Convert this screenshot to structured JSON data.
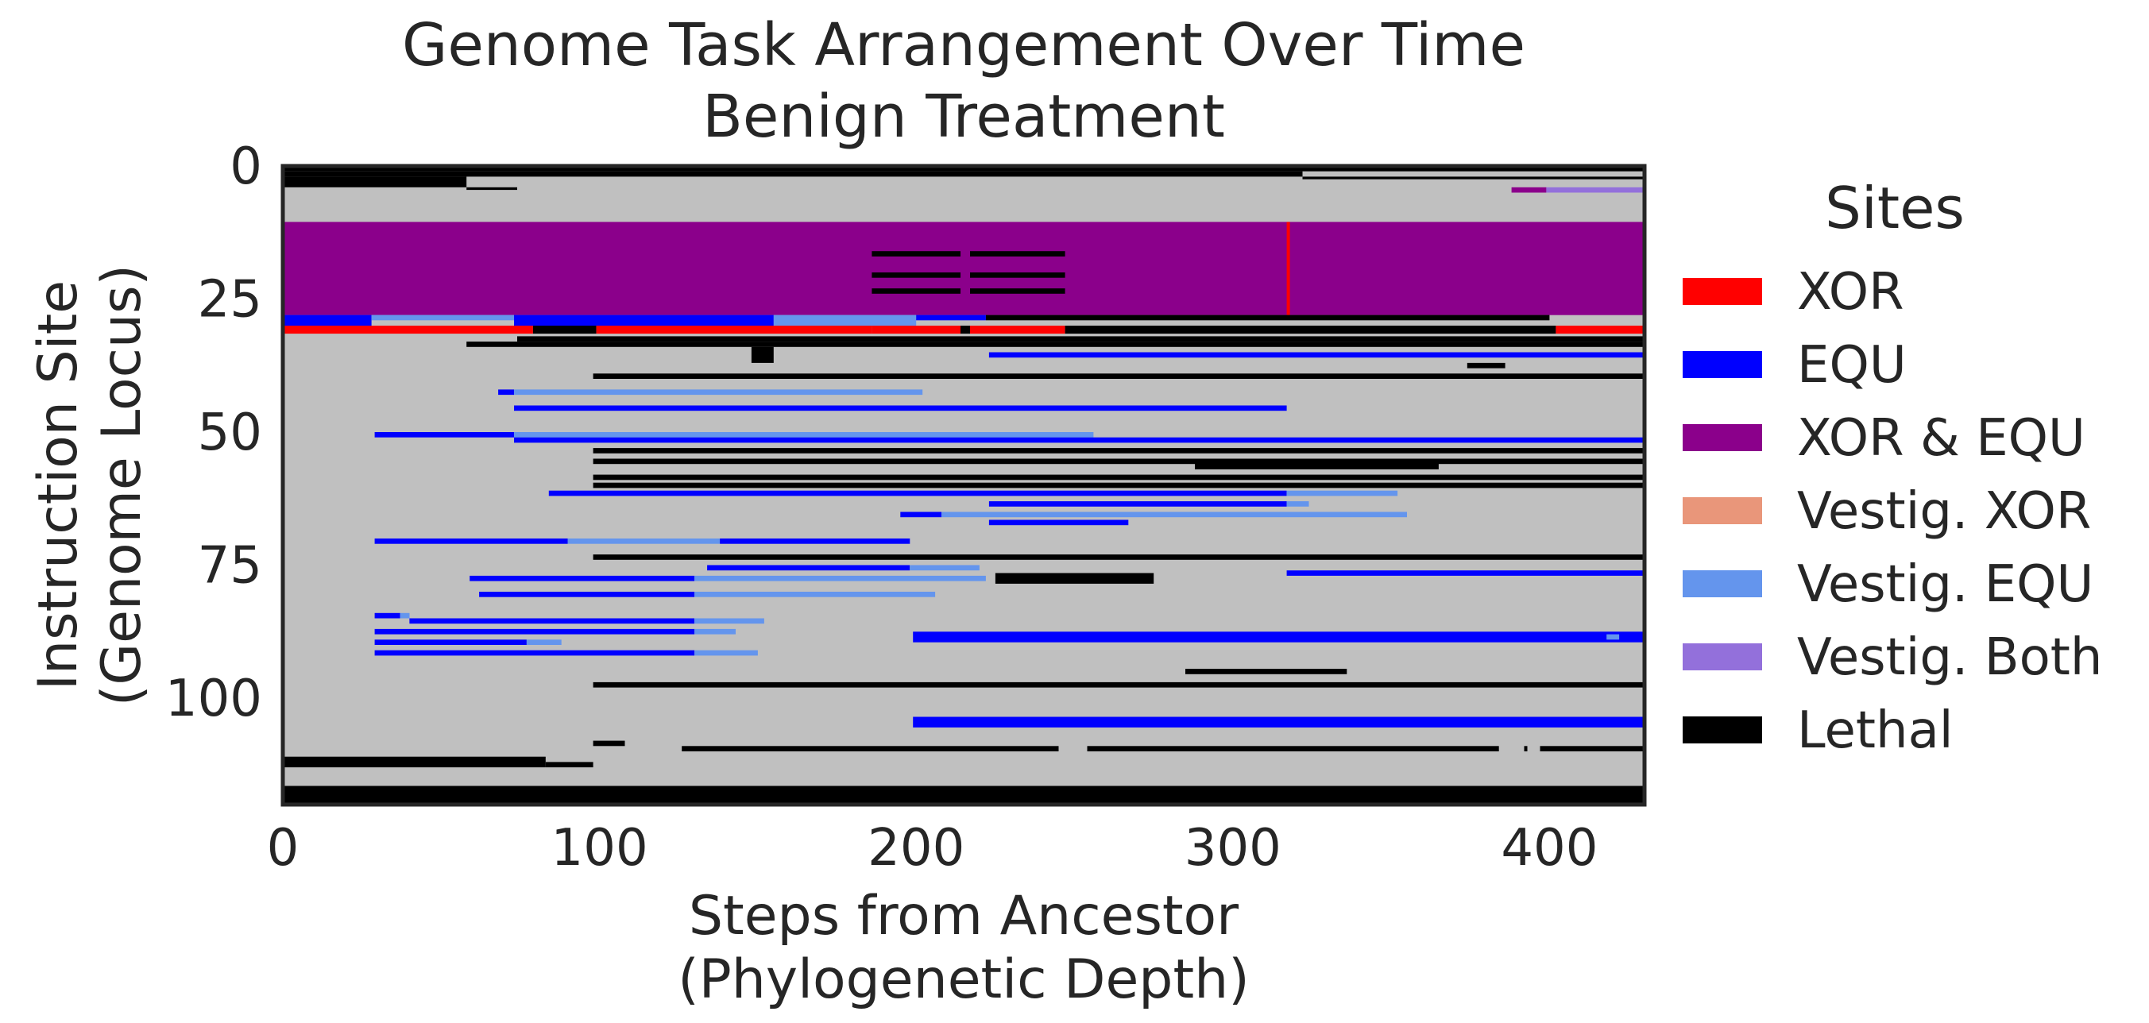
{
  "chart_data": {
    "type": "heatmap",
    "title_line1": "Genome Task Arrangement Over Time",
    "title_line2": "Benign Treatment",
    "xlabel_line1": "Steps from Ancestor",
    "xlabel_line2": "(Phylogenetic Depth)",
    "ylabel_line1": "Instruction Site",
    "ylabel_line2": "(Genome Locus)",
    "xlim": [
      0,
      430
    ],
    "ylim": [
      0,
      120
    ],
    "y_inverted": true,
    "x_ticks": [
      0,
      100,
      200,
      300,
      400
    ],
    "x_tick_labels": [
      "0",
      "100",
      "200",
      "300",
      "400"
    ],
    "y_ticks": [
      0,
      25,
      50,
      75,
      100
    ],
    "y_tick_labels": [
      "0",
      "25",
      "50",
      "75",
      "100"
    ],
    "background_color": "#c0c0c0",
    "legend": {
      "title": "Sites",
      "placement": "right",
      "items": [
        {
          "key": "xor",
          "label": "XOR",
          "color": "#ff0000"
        },
        {
          "key": "equ",
          "label": "EQU",
          "color": "#0000ff"
        },
        {
          "key": "both",
          "label": "XOR & EQU",
          "color": "#8b008b"
        },
        {
          "key": "vxor",
          "label": "Vestig. XOR",
          "color": "#e9967a"
        },
        {
          "key": "vequ",
          "label": "Vestig. EQU",
          "color": "#6495ed"
        },
        {
          "key": "vboth",
          "label": "Vestig. Both",
          "color": "#9370db"
        },
        {
          "key": "lethal",
          "label": "Lethal",
          "color": "#000000"
        }
      ]
    },
    "segments": [
      {
        "kind": "lethal",
        "x0": 0,
        "x1": 430,
        "y0": 0,
        "y1": 1
      },
      {
        "kind": "lethal",
        "x0": 0,
        "x1": 322,
        "y0": 1,
        "y1": 2
      },
      {
        "kind": "lethal",
        "x0": 0,
        "x1": 58,
        "y0": 2,
        "y1": 4
      },
      {
        "kind": "lethal",
        "x0": 322,
        "x1": 430,
        "y0": 2,
        "y1": 2.5
      },
      {
        "kind": "lethal",
        "x0": 58,
        "x1": 74,
        "y0": 4,
        "y1": 4.5
      },
      {
        "kind": "both",
        "x0": 388,
        "x1": 399,
        "y0": 4,
        "y1": 5
      },
      {
        "kind": "vboth",
        "x0": 399,
        "x1": 430,
        "y0": 4,
        "y1": 5
      },
      {
        "kind": "both",
        "x0": 0,
        "x1": 430,
        "y0": 10.5,
        "y1": 28
      },
      {
        "kind": "lethal",
        "x0": 186,
        "x1": 214,
        "y0": 16,
        "y1": 17
      },
      {
        "kind": "lethal",
        "x0": 217,
        "x1": 247,
        "y0": 16,
        "y1": 17
      },
      {
        "kind": "lethal",
        "x0": 186,
        "x1": 214,
        "y0": 20,
        "y1": 21
      },
      {
        "kind": "lethal",
        "x0": 217,
        "x1": 247,
        "y0": 20,
        "y1": 21
      },
      {
        "kind": "lethal",
        "x0": 186,
        "x1": 214,
        "y0": 23,
        "y1": 24
      },
      {
        "kind": "lethal",
        "x0": 217,
        "x1": 247,
        "y0": 23,
        "y1": 24
      },
      {
        "kind": "xor",
        "x0": 317,
        "x1": 318,
        "y0": 10.5,
        "y1": 28
      },
      {
        "kind": "equ",
        "x0": 0,
        "x1": 28,
        "y0": 28,
        "y1": 30
      },
      {
        "kind": "vequ",
        "x0": 28,
        "x1": 73,
        "y0": 28,
        "y1": 29
      },
      {
        "kind": "equ",
        "x0": 73,
        "x1": 155,
        "y0": 28,
        "y1": 30
      },
      {
        "kind": "vequ",
        "x0": 155,
        "x1": 200,
        "y0": 28,
        "y1": 30
      },
      {
        "kind": "equ",
        "x0": 200,
        "x1": 222,
        "y0": 28,
        "y1": 29
      },
      {
        "kind": "lethal",
        "x0": 222,
        "x1": 400,
        "y0": 28,
        "y1": 29
      },
      {
        "kind": "xor",
        "x0": 0,
        "x1": 79,
        "y0": 30,
        "y1": 31.5
      },
      {
        "kind": "lethal",
        "x0": 79,
        "x1": 99,
        "y0": 30,
        "y1": 31.5
      },
      {
        "kind": "xor",
        "x0": 99,
        "x1": 186,
        "y0": 30,
        "y1": 31.5
      },
      {
        "kind": "xor",
        "x0": 186,
        "x1": 214,
        "y0": 30,
        "y1": 31.5
      },
      {
        "kind": "lethal",
        "x0": 214,
        "x1": 217,
        "y0": 30,
        "y1": 31.5
      },
      {
        "kind": "xor",
        "x0": 217,
        "x1": 247,
        "y0": 30,
        "y1": 31.5
      },
      {
        "kind": "lethal",
        "x0": 247,
        "x1": 402,
        "y0": 30,
        "y1": 31.5
      },
      {
        "kind": "xor",
        "x0": 402,
        "x1": 430,
        "y0": 30,
        "y1": 31.5
      },
      {
        "kind": "lethal",
        "x0": 74,
        "x1": 430,
        "y0": 32,
        "y1": 33
      },
      {
        "kind": "lethal",
        "x0": 58,
        "x1": 430,
        "y0": 33,
        "y1": 34
      },
      {
        "kind": "lethal",
        "x0": 148,
        "x1": 155,
        "y0": 34,
        "y1": 37
      },
      {
        "kind": "equ",
        "x0": 223,
        "x1": 430,
        "y0": 35,
        "y1": 36
      },
      {
        "kind": "lethal",
        "x0": 374,
        "x1": 386,
        "y0": 37,
        "y1": 38
      },
      {
        "kind": "lethal",
        "x0": 98,
        "x1": 430,
        "y0": 39,
        "y1": 40
      },
      {
        "kind": "equ",
        "x0": 68,
        "x1": 73,
        "y0": 42,
        "y1": 43
      },
      {
        "kind": "vequ",
        "x0": 73,
        "x1": 202,
        "y0": 42,
        "y1": 43
      },
      {
        "kind": "equ",
        "x0": 73,
        "x1": 317,
        "y0": 45,
        "y1": 46
      },
      {
        "kind": "equ",
        "x0": 29,
        "x1": 73,
        "y0": 50,
        "y1": 51
      },
      {
        "kind": "vequ",
        "x0": 73,
        "x1": 256,
        "y0": 50,
        "y1": 51
      },
      {
        "kind": "equ",
        "x0": 73,
        "x1": 430,
        "y0": 51,
        "y1": 52
      },
      {
        "kind": "lethal",
        "x0": 98,
        "x1": 430,
        "y0": 53,
        "y1": 54
      },
      {
        "kind": "lethal",
        "x0": 98,
        "x1": 430,
        "y0": 55,
        "y1": 56
      },
      {
        "kind": "lethal",
        "x0": 288,
        "x1": 365,
        "y0": 55,
        "y1": 57
      },
      {
        "kind": "lethal",
        "x0": 98,
        "x1": 430,
        "y0": 58,
        "y1": 59
      },
      {
        "kind": "lethal",
        "x0": 98,
        "x1": 430,
        "y0": 59.5,
        "y1": 60.5
      },
      {
        "kind": "equ",
        "x0": 84,
        "x1": 317,
        "y0": 61,
        "y1": 62
      },
      {
        "kind": "vequ",
        "x0": 317,
        "x1": 352,
        "y0": 61,
        "y1": 62
      },
      {
        "kind": "equ",
        "x0": 223,
        "x1": 317,
        "y0": 63,
        "y1": 64
      },
      {
        "kind": "vequ",
        "x0": 317,
        "x1": 324,
        "y0": 63,
        "y1": 64
      },
      {
        "kind": "equ",
        "x0": 195,
        "x1": 208,
        "y0": 65,
        "y1": 66
      },
      {
        "kind": "vequ",
        "x0": 208,
        "x1": 355,
        "y0": 65,
        "y1": 66
      },
      {
        "kind": "equ",
        "x0": 223,
        "x1": 267,
        "y0": 66.5,
        "y1": 67.5
      },
      {
        "kind": "equ",
        "x0": 29,
        "x1": 90,
        "y0": 70,
        "y1": 71
      },
      {
        "kind": "vequ",
        "x0": 90,
        "x1": 138,
        "y0": 70,
        "y1": 71
      },
      {
        "kind": "equ",
        "x0": 138,
        "x1": 198,
        "y0": 70,
        "y1": 71
      },
      {
        "kind": "lethal",
        "x0": 98,
        "x1": 430,
        "y0": 73,
        "y1": 74
      },
      {
        "kind": "equ",
        "x0": 134,
        "x1": 198,
        "y0": 75,
        "y1": 76
      },
      {
        "kind": "vequ",
        "x0": 198,
        "x1": 220,
        "y0": 75,
        "y1": 76
      },
      {
        "kind": "equ",
        "x0": 317,
        "x1": 430,
        "y0": 76,
        "y1": 77
      },
      {
        "kind": "equ",
        "x0": 59,
        "x1": 130,
        "y0": 77,
        "y1": 78
      },
      {
        "kind": "vequ",
        "x0": 130,
        "x1": 222,
        "y0": 77,
        "y1": 78
      },
      {
        "kind": "lethal",
        "x0": 225,
        "x1": 275,
        "y0": 76.5,
        "y1": 78.5
      },
      {
        "kind": "equ",
        "x0": 62,
        "x1": 130,
        "y0": 80,
        "y1": 81
      },
      {
        "kind": "vequ",
        "x0": 130,
        "x1": 206,
        "y0": 80,
        "y1": 81
      },
      {
        "kind": "equ",
        "x0": 29,
        "x1": 37,
        "y0": 84,
        "y1": 85
      },
      {
        "kind": "vequ",
        "x0": 37,
        "x1": 40,
        "y0": 84,
        "y1": 85
      },
      {
        "kind": "equ",
        "x0": 40,
        "x1": 130,
        "y0": 85,
        "y1": 86
      },
      {
        "kind": "vequ",
        "x0": 130,
        "x1": 152,
        "y0": 85,
        "y1": 86
      },
      {
        "kind": "equ",
        "x0": 29,
        "x1": 130,
        "y0": 87,
        "y1": 88
      },
      {
        "kind": "vequ",
        "x0": 130,
        "x1": 143,
        "y0": 87,
        "y1": 88
      },
      {
        "kind": "equ",
        "x0": 199,
        "x1": 430,
        "y0": 87.5,
        "y1": 89.5
      },
      {
        "kind": "vequ",
        "x0": 418,
        "x1": 422,
        "y0": 88,
        "y1": 89
      },
      {
        "kind": "equ",
        "x0": 29,
        "x1": 77,
        "y0": 89,
        "y1": 90
      },
      {
        "kind": "vequ",
        "x0": 77,
        "x1": 88,
        "y0": 89,
        "y1": 90
      },
      {
        "kind": "equ",
        "x0": 29,
        "x1": 130,
        "y0": 91,
        "y1": 92
      },
      {
        "kind": "vequ",
        "x0": 130,
        "x1": 150,
        "y0": 91,
        "y1": 92
      },
      {
        "kind": "lethal",
        "x0": 285,
        "x1": 336,
        "y0": 94.5,
        "y1": 95.5
      },
      {
        "kind": "lethal",
        "x0": 98,
        "x1": 430,
        "y0": 97,
        "y1": 98
      },
      {
        "kind": "equ",
        "x0": 199,
        "x1": 430,
        "y0": 103.5,
        "y1": 105.5
      },
      {
        "kind": "lethal",
        "x0": 98,
        "x1": 108,
        "y0": 108,
        "y1": 109
      },
      {
        "kind": "lethal",
        "x0": 126,
        "x1": 245,
        "y0": 109,
        "y1": 110
      },
      {
        "kind": "lethal",
        "x0": 254,
        "x1": 384,
        "y0": 109,
        "y1": 110
      },
      {
        "kind": "lethal",
        "x0": 392,
        "x1": 393,
        "y0": 109,
        "y1": 110
      },
      {
        "kind": "lethal",
        "x0": 397,
        "x1": 430,
        "y0": 109,
        "y1": 110
      },
      {
        "kind": "lethal",
        "x0": 0,
        "x1": 83,
        "y0": 111,
        "y1": 113
      },
      {
        "kind": "lethal",
        "x0": 83,
        "x1": 98,
        "y0": 112,
        "y1": 113
      },
      {
        "kind": "lethal",
        "x0": 0,
        "x1": 430,
        "y0": 116.5,
        "y1": 120
      }
    ]
  }
}
